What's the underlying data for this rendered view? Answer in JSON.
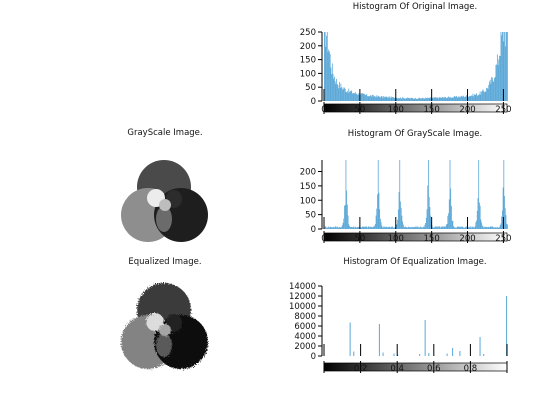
{
  "images": {
    "grayscale_title": "GrayScale Image.",
    "equalized_title": "Equalized Image."
  },
  "chart_data": [
    {
      "type": "bar",
      "title": "Histogram Of Original Image.",
      "xlim": [
        0,
        255
      ],
      "ylim": [
        0,
        250
      ],
      "yticks": [
        0,
        50,
        100,
        150,
        200,
        250
      ],
      "xticks": [
        0,
        50,
        100,
        150,
        200,
        250
      ],
      "profile": [
        [
          0,
          250
        ],
        [
          3,
          250
        ],
        [
          6,
          200
        ],
        [
          10,
          120
        ],
        [
          15,
          80
        ],
        [
          20,
          60
        ],
        [
          30,
          40
        ],
        [
          40,
          30
        ],
        [
          50,
          25
        ],
        [
          60,
          20
        ],
        [
          80,
          15
        ],
        [
          100,
          12
        ],
        [
          120,
          10
        ],
        [
          140,
          10
        ],
        [
          160,
          12
        ],
        [
          180,
          14
        ],
        [
          200,
          18
        ],
        [
          215,
          25
        ],
        [
          225,
          40
        ],
        [
          235,
          80
        ],
        [
          242,
          150
        ],
        [
          246,
          220
        ],
        [
          249,
          250
        ],
        [
          255,
          250
        ]
      ],
      "color": "#5ca8d8"
    },
    {
      "type": "bar",
      "title": "Histogram Of GrayScale Image.",
      "xlim": [
        0,
        255
      ],
      "ylim": [
        0,
        240
      ],
      "yticks": [
        0,
        50,
        100,
        150,
        200
      ],
      "xticks": [
        0,
        50,
        100,
        150,
        200,
        250
      ],
      "peaks": [
        {
          "x": 30,
          "y": 240
        },
        {
          "x": 75,
          "y": 240
        },
        {
          "x": 105,
          "y": 240
        },
        {
          "x": 145,
          "y": 240
        },
        {
          "x": 175,
          "y": 240
        },
        {
          "x": 215,
          "y": 240
        },
        {
          "x": 250,
          "y": 240
        }
      ],
      "color": "#5ca8d8"
    },
    {
      "type": "bar",
      "title": "Histogram Of Equalization Image.",
      "xlim": [
        0,
        1
      ],
      "ylim": [
        0,
        14000
      ],
      "yticks": [
        0,
        2000,
        4000,
        6000,
        8000,
        10000,
        12000,
        14000
      ],
      "xticks": [
        0,
        0.2,
        0.4,
        0.6,
        0.8,
        1
      ],
      "xticklabels": [
        "",
        "0.2",
        "0.4",
        "0.6",
        "0.8",
        ""
      ],
      "bars": [
        {
          "x": 0.14,
          "y": 6700
        },
        {
          "x": 0.16,
          "y": 900
        },
        {
          "x": 0.3,
          "y": 6400
        },
        {
          "x": 0.32,
          "y": 700
        },
        {
          "x": 0.38,
          "y": 500
        },
        {
          "x": 0.4,
          "y": 300
        },
        {
          "x": 0.52,
          "y": 400
        },
        {
          "x": 0.55,
          "y": 7200
        },
        {
          "x": 0.57,
          "y": 600
        },
        {
          "x": 0.67,
          "y": 500
        },
        {
          "x": 0.7,
          "y": 1600
        },
        {
          "x": 0.74,
          "y": 1000
        },
        {
          "x": 0.85,
          "y": 3800
        },
        {
          "x": 0.87,
          "y": 400
        },
        {
          "x": 0.995,
          "y": 12000
        }
      ],
      "color": "#5ca8d8"
    }
  ]
}
